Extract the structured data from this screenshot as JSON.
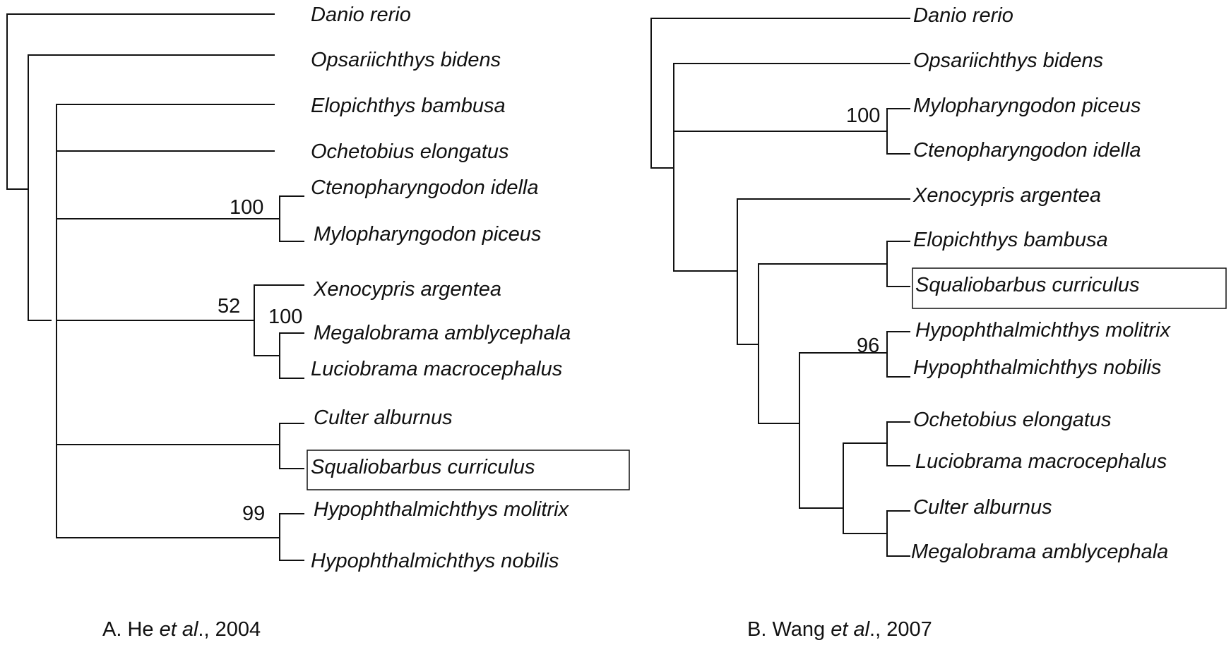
{
  "panels": [
    {
      "caption_prefix": "A. He ",
      "caption_etal": "et al",
      "caption_suffix": "., 2004",
      "taxa": [
        "Danio rerio",
        "Opsariichthys bidens",
        "Elopichthys bambusa",
        "Ochetobius elongatus",
        "Ctenopharyngodon idella",
        "Mylopharyngodon piceus",
        "Xenocypris argentea",
        "Megalobrama amblycephala",
        "Luciobrama macrocephalus",
        "Culter alburnus",
        "Squaliobarbus curriculus",
        "Hypophthalmichthys molitrix",
        "Hypophthalmichthys nobilis"
      ],
      "highlighted_taxon": "Squaliobarbus curriculus",
      "support_values": [
        "100",
        "52",
        "100",
        "99"
      ]
    },
    {
      "caption_prefix": "B. Wang ",
      "caption_etal": "et al",
      "caption_suffix": "., 2007",
      "taxa": [
        "Danio rerio",
        "Opsariichthys bidens",
        "Mylopharyngodon piceus",
        "Ctenopharyngodon idella",
        "Xenocypris argentea",
        "Elopichthys bambusa",
        "Squaliobarbus curriculus",
        "Hypophthalmichthys molitrix",
        "Hypophthalmichthys nobilis",
        "Ochetobius elongatus",
        "Luciobrama macrocephalus",
        "Culter alburnus",
        "Megalobrama amblycephala"
      ],
      "highlighted_taxon": "Squaliobarbus curriculus",
      "support_values": [
        "100",
        "96"
      ]
    }
  ]
}
